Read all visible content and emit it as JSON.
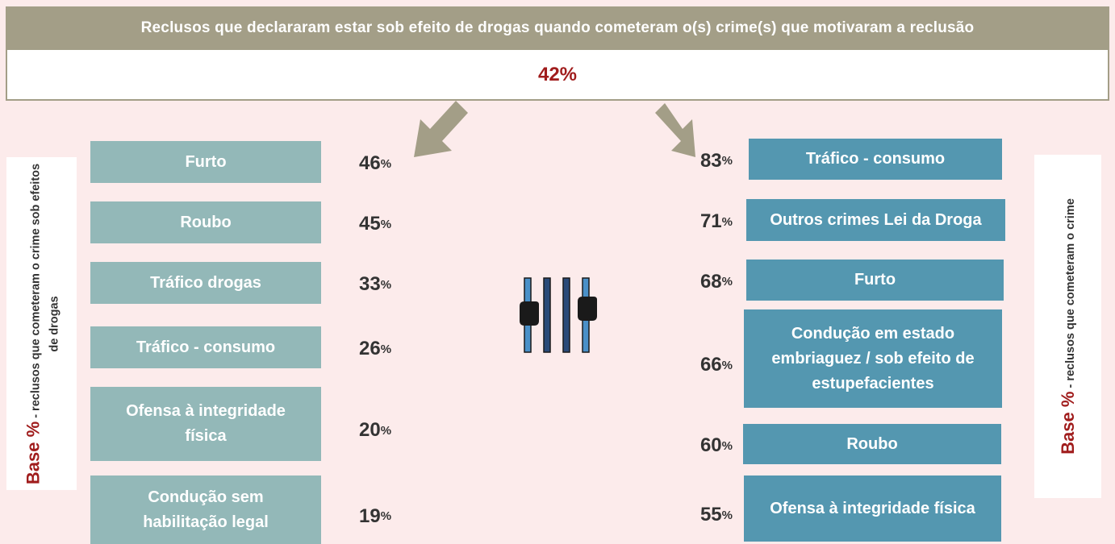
{
  "header": {
    "title": "Reclusos que declararam estar sob efeito de drogas quando cometeram o(s) crime(s) que motivaram a reclusão",
    "total": 42
  },
  "unit": "%",
  "left": {
    "base_label": "Base %",
    "base_text": "- reclusos que cometeram o crime sob efeitos de drogas",
    "items": [
      {
        "label": "Furto",
        "value": 46
      },
      {
        "label": "Roubo",
        "value": 45
      },
      {
        "label": "Tráfico drogas",
        "value": 33
      },
      {
        "label": "Tráfico - consumo",
        "value": 26
      },
      {
        "label": "Ofensa à integridade física",
        "value": 20
      },
      {
        "label": "Condução sem habilitação legal",
        "value": 19
      }
    ]
  },
  "right": {
    "base_label": "Base %",
    "base_text": "- reclusos que cometeram o crime",
    "items": [
      {
        "label": "Tráfico - consumo",
        "value": 83
      },
      {
        "label": "Outros crimes Lei da Droga",
        "value": 71
      },
      {
        "label": "Furto",
        "value": 68
      },
      {
        "label": "Condução em estado embriaguez / sob efeito de estupefacientes",
        "value": 66
      },
      {
        "label": "Roubo",
        "value": 60
      },
      {
        "label": "Ofensa à integridade física",
        "value": 55
      }
    ]
  }
}
